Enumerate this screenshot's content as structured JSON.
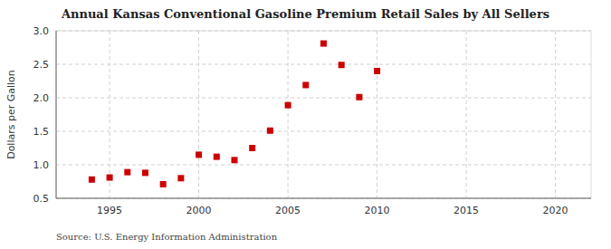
{
  "chart_data": {
    "type": "scatter",
    "title": "Annual Kansas Conventional Gasoline Premium Retail Sales by All Sellers",
    "y_label": "Dollars per Gallon",
    "annotations": [
      "Source: U.S. Energy Information Administration"
    ],
    "x": [
      1994,
      1995,
      1996,
      1997,
      1998,
      1999,
      2000,
      2001,
      2002,
      2003,
      2004,
      2005,
      2006,
      2007,
      2008,
      2009,
      2010
    ],
    "values": [
      0.78,
      0.81,
      0.89,
      0.88,
      0.71,
      0.8,
      1.15,
      1.12,
      1.07,
      1.25,
      1.51,
      1.89,
      2.19,
      2.81,
      2.49,
      2.01,
      2.4
    ],
    "color": "#cc0000",
    "marker": "square",
    "xlim": [
      1992,
      2022
    ],
    "ylim": [
      0.5,
      3.0
    ],
    "xticks": [
      1995,
      2000,
      2005,
      2010,
      2015,
      2020
    ],
    "yticks": [
      0.5,
      {
        "value": 1.0,
        "label": "1.0"
      },
      1.5,
      {
        "value": 2.0,
        "label": "2.0"
      },
      2.5,
      {
        "value": 3.0,
        "label": "3.0"
      }
    ],
    "grid": true
  }
}
